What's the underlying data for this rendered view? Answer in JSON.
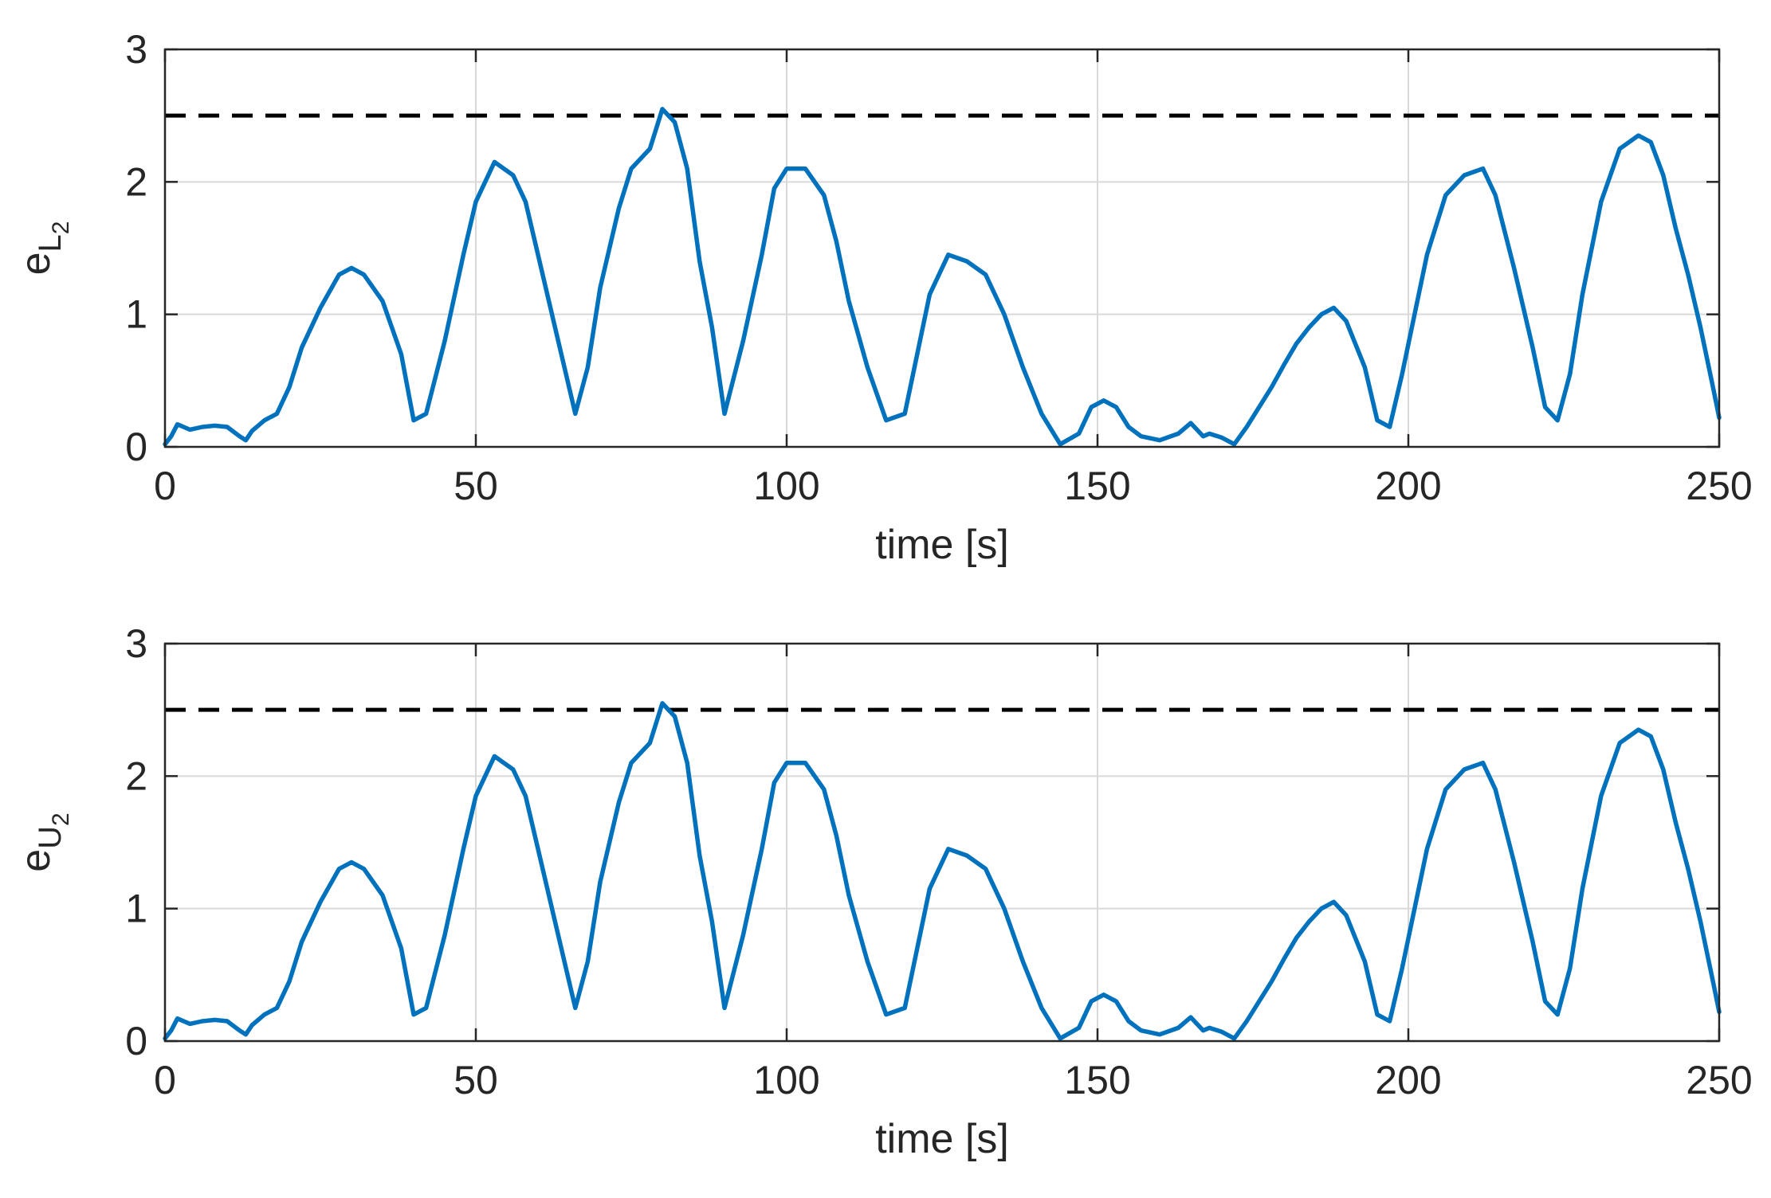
{
  "colors": {
    "series": "#0072BD",
    "threshold": "#000000",
    "grid": "#d9d9d9",
    "axis": "#262626"
  },
  "chart_data": [
    {
      "type": "line",
      "xlabel": "time [s]",
      "ylabel": {
        "base": "e",
        "sub1": "L",
        "sub2": "2"
      },
      "xlim": [
        0,
        250
      ],
      "ylim": [
        0,
        3
      ],
      "xticks": [
        "0",
        "50",
        "100",
        "150",
        "200",
        "250"
      ],
      "yticks": [
        "0",
        "1",
        "2",
        "3"
      ],
      "grid": true,
      "threshold": {
        "y": 2.5,
        "style": "dashed"
      },
      "series": [
        {
          "x": [
            0,
            1,
            2,
            3,
            4,
            6,
            8,
            10,
            12,
            13,
            14,
            16,
            18,
            20,
            22,
            25,
            28,
            30,
            32,
            35,
            38,
            40,
            42,
            45,
            48,
            50,
            53,
            56,
            58,
            60,
            63,
            66,
            68,
            70,
            73,
            75,
            78,
            80,
            82,
            84,
            86,
            88,
            90,
            93,
            96,
            98,
            100,
            103,
            106,
            108,
            110,
            113,
            116,
            119,
            121,
            123,
            126,
            129,
            132,
            135,
            138,
            141,
            144,
            147,
            149,
            151,
            153,
            155,
            157,
            160,
            163,
            165,
            167,
            168,
            170,
            172,
            174,
            176,
            178,
            180,
            182,
            184,
            186,
            188,
            190,
            193,
            195,
            197,
            199,
            201,
            203,
            206,
            209,
            212,
            214,
            217,
            220,
            222,
            224,
            226,
            228,
            231,
            234,
            237,
            239,
            241,
            243,
            245,
            247,
            249,
            250
          ],
          "y": [
            0.02,
            0.08,
            0.17,
            0.15,
            0.13,
            0.15,
            0.16,
            0.15,
            0.08,
            0.05,
            0.12,
            0.2,
            0.25,
            0.45,
            0.75,
            1.05,
            1.3,
            1.35,
            1.3,
            1.1,
            0.7,
            0.2,
            0.25,
            0.8,
            1.45,
            1.85,
            2.15,
            2.05,
            1.85,
            1.45,
            0.85,
            0.25,
            0.6,
            1.2,
            1.8,
            2.1,
            2.25,
            2.55,
            2.45,
            2.1,
            1.4,
            0.9,
            0.25,
            0.8,
            1.45,
            1.95,
            2.1,
            2.1,
            1.9,
            1.55,
            1.1,
            0.6,
            0.2,
            0.25,
            0.7,
            1.15,
            1.45,
            1.4,
            1.3,
            1.0,
            0.6,
            0.25,
            0.02,
            0.1,
            0.3,
            0.35,
            0.3,
            0.15,
            0.08,
            0.05,
            0.1,
            0.18,
            0.08,
            0.1,
            0.07,
            0.02,
            0.15,
            0.3,
            0.45,
            0.62,
            0.78,
            0.9,
            1.0,
            1.05,
            0.95,
            0.6,
            0.2,
            0.15,
            0.55,
            1.0,
            1.45,
            1.9,
            2.05,
            2.1,
            1.9,
            1.35,
            0.75,
            0.3,
            0.2,
            0.55,
            1.15,
            1.85,
            2.25,
            2.35,
            2.3,
            2.05,
            1.65,
            1.3,
            0.9,
            0.45,
            0.22
          ]
        }
      ]
    },
    {
      "type": "line",
      "xlabel": "time [s]",
      "ylabel": {
        "base": "e",
        "sub1": "U",
        "sub2": "2"
      },
      "xlim": [
        0,
        250
      ],
      "ylim": [
        0,
        3
      ],
      "xticks": [
        "0",
        "50",
        "100",
        "150",
        "200",
        "250"
      ],
      "yticks": [
        "0",
        "1",
        "2",
        "3"
      ],
      "grid": true,
      "threshold": {
        "y": 2.5,
        "style": "dashed"
      },
      "series": [
        {
          "x": [
            0,
            1,
            2,
            3,
            4,
            6,
            8,
            10,
            12,
            13,
            14,
            16,
            18,
            20,
            22,
            25,
            28,
            30,
            32,
            35,
            38,
            40,
            42,
            45,
            48,
            50,
            53,
            56,
            58,
            60,
            63,
            66,
            68,
            70,
            73,
            75,
            78,
            80,
            82,
            84,
            86,
            88,
            90,
            93,
            96,
            98,
            100,
            103,
            106,
            108,
            110,
            113,
            116,
            119,
            121,
            123,
            126,
            129,
            132,
            135,
            138,
            141,
            144,
            147,
            149,
            151,
            153,
            155,
            157,
            160,
            163,
            165,
            167,
            168,
            170,
            172,
            174,
            176,
            178,
            180,
            182,
            184,
            186,
            188,
            190,
            193,
            195,
            197,
            199,
            201,
            203,
            206,
            209,
            212,
            214,
            217,
            220,
            222,
            224,
            226,
            228,
            231,
            234,
            237,
            239,
            241,
            243,
            245,
            247,
            249,
            250
          ],
          "y": [
            0.02,
            0.08,
            0.17,
            0.15,
            0.13,
            0.15,
            0.16,
            0.15,
            0.08,
            0.05,
            0.12,
            0.2,
            0.25,
            0.45,
            0.75,
            1.05,
            1.3,
            1.35,
            1.3,
            1.1,
            0.7,
            0.2,
            0.25,
            0.8,
            1.45,
            1.85,
            2.15,
            2.05,
            1.85,
            1.45,
            0.85,
            0.25,
            0.6,
            1.2,
            1.8,
            2.1,
            2.25,
            2.55,
            2.45,
            2.1,
            1.4,
            0.9,
            0.25,
            0.8,
            1.45,
            1.95,
            2.1,
            2.1,
            1.9,
            1.55,
            1.1,
            0.6,
            0.2,
            0.25,
            0.7,
            1.15,
            1.45,
            1.4,
            1.3,
            1.0,
            0.6,
            0.25,
            0.02,
            0.1,
            0.3,
            0.35,
            0.3,
            0.15,
            0.08,
            0.05,
            0.1,
            0.18,
            0.08,
            0.1,
            0.07,
            0.02,
            0.15,
            0.3,
            0.45,
            0.62,
            0.78,
            0.9,
            1.0,
            1.05,
            0.95,
            0.6,
            0.2,
            0.15,
            0.55,
            1.0,
            1.45,
            1.9,
            2.05,
            2.1,
            1.9,
            1.35,
            0.75,
            0.3,
            0.2,
            0.55,
            1.15,
            1.85,
            2.25,
            2.35,
            2.3,
            2.05,
            1.65,
            1.3,
            0.9,
            0.45,
            0.22
          ]
        }
      ]
    }
  ]
}
